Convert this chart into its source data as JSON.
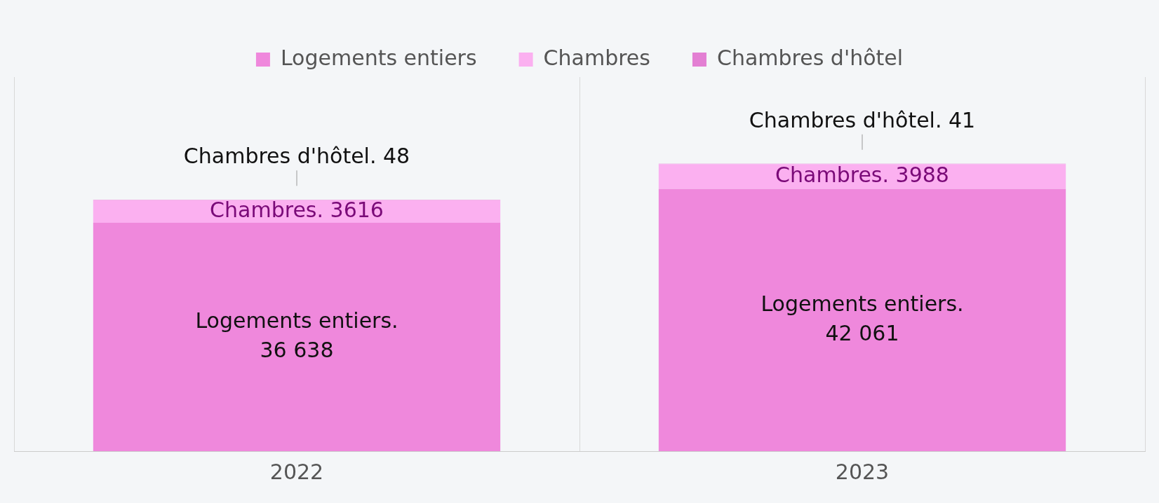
{
  "chart_data": {
    "type": "bar",
    "stacked": true,
    "categories": [
      "2022",
      "2023"
    ],
    "legend": "top",
    "grid": "x",
    "series": [
      {
        "name": "Logements entiers",
        "color": "#ef88dc",
        "values": [
          36638,
          42061
        ],
        "value_labels": [
          "Logements entiers. 36 638",
          "Logements entiers. 42 061"
        ]
      },
      {
        "name": "Chambres",
        "color": "#fbb0f0",
        "values": [
          3616,
          3988
        ],
        "value_labels": [
          "Chambres. 3616",
          "Chambres. 3988"
        ]
      },
      {
        "name": "Chambres d'hôtel",
        "color": "#e37fd3",
        "values": [
          48,
          41
        ],
        "value_labels": [
          "Chambres d'hôtel. 48",
          "Chambres d'hôtel. 41"
        ]
      }
    ]
  }
}
